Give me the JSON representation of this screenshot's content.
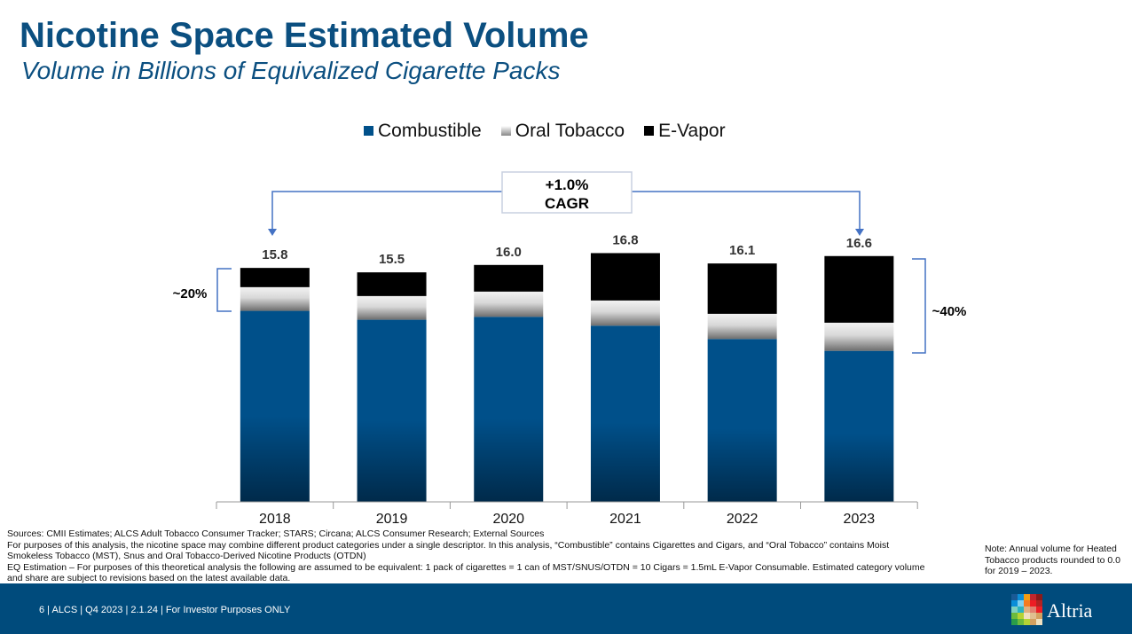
{
  "header": {
    "title": "Nicotine Space Estimated Volume",
    "subtitle": "Volume in Billions of Equivalized Cigarette Packs"
  },
  "chart_data": {
    "type": "bar",
    "stacked": true,
    "title": "Nicotine Space Estimated Volume",
    "ylabel": "Volume in Billions of Equivalized Cigarette Packs",
    "categories": [
      "2018",
      "2019",
      "2020",
      "2021",
      "2022",
      "2023"
    ],
    "series": [
      {
        "name": "Combustible",
        "color": "#00508a",
        "values": [
          12.9,
          12.3,
          12.5,
          11.9,
          11.0,
          10.2
        ]
      },
      {
        "name": "Oral Tobacco",
        "color": "#bfbfbf",
        "values": [
          1.6,
          1.6,
          1.7,
          1.7,
          1.7,
          1.9
        ]
      },
      {
        "name": "E-Vapor",
        "color": "#000000",
        "values": [
          1.3,
          1.6,
          1.8,
          3.2,
          3.4,
          4.5
        ]
      }
    ],
    "totals": [
      "15.8",
      "15.5",
      "16.0",
      "16.8",
      "16.1",
      "16.6"
    ],
    "ylim": [
      0,
      18
    ],
    "legend": "top",
    "annotations": {
      "cagr_value": "+1.0%",
      "cagr_label": "CAGR",
      "share_2018": "~20%",
      "share_2023": "~40%"
    }
  },
  "sources": {
    "line1": "Sources: CMII Estimates; ALCS Adult Tobacco Consumer Tracker; STARS; Circana; ALCS Consumer Research; External Sources",
    "line2": "For purposes of this analysis, the nicotine space may combine different product categories under a single descriptor. In this analysis, “Combustible” contains Cigarettes and Cigars, and “Oral Tobacco” contains Moist Smokeless Tobacco (MST), Snus and Oral Tobacco-Derived Nicotine Products (OTDN)",
    "line3": "EQ Estimation – For purposes of this theoretical analysis the following are assumed to be equivalent: 1 pack of cigarettes = 1 can of MST/SNUS/OTDN = 10 Cigars = 1.5mL E-Vapor Consumable. Estimated category volume and share are subject to revisions based on the latest available data."
  },
  "note": "Note: Annual volume for Heated Tobacco products rounded to 0.0 for 2019 – 2023.",
  "footer": {
    "text": "6 | ALCS | Q4 2023 | 2.1.24 | For Investor Purposes ONLY",
    "brand": "Altria"
  }
}
